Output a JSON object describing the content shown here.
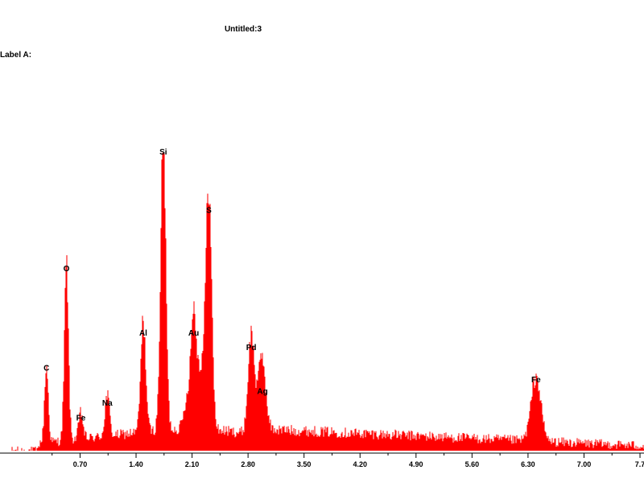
{
  "header": {
    "title": "Untitled:3",
    "label_a": "Label A:"
  },
  "chart_data": {
    "type": "area",
    "title": "Untitled:3",
    "xlabel": "",
    "ylabel": "",
    "xlim": [
      -0.15,
      7.75
    ],
    "ylim": [
      0,
      1
    ],
    "grid": false,
    "color": "#ff0000",
    "xticks": [
      0.7,
      1.4,
      2.1,
      2.8,
      3.5,
      4.2,
      4.9,
      5.6,
      6.3,
      7.0,
      7.7
    ],
    "xtick_labels": [
      "0.70",
      "1.40",
      "2.10",
      "2.80",
      "3.50",
      "4.20",
      "4.90",
      "5.60",
      "6.30",
      "7.00",
      "7.7"
    ],
    "peaks": [
      {
        "label": "C",
        "x": 0.28,
        "y": 0.26
      },
      {
        "label": "O",
        "x": 0.53,
        "y": 0.6
      },
      {
        "label": "Fe",
        "x": 0.71,
        "y": 0.09
      },
      {
        "label": "Na",
        "x": 1.04,
        "y": 0.14
      },
      {
        "label": "Al",
        "x": 1.49,
        "y": 0.38
      },
      {
        "label": "Si",
        "x": 1.74,
        "y": 1.0
      },
      {
        "label": "Au",
        "x": 2.12,
        "y": 0.38
      },
      {
        "label": "S",
        "x": 2.31,
        "y": 0.8
      },
      {
        "label": "Pd",
        "x": 2.84,
        "y": 0.33
      },
      {
        "label": "Ag",
        "x": 2.98,
        "y": 0.18
      },
      {
        "label": "Fe",
        "x": 6.4,
        "y": 0.22
      }
    ]
  }
}
